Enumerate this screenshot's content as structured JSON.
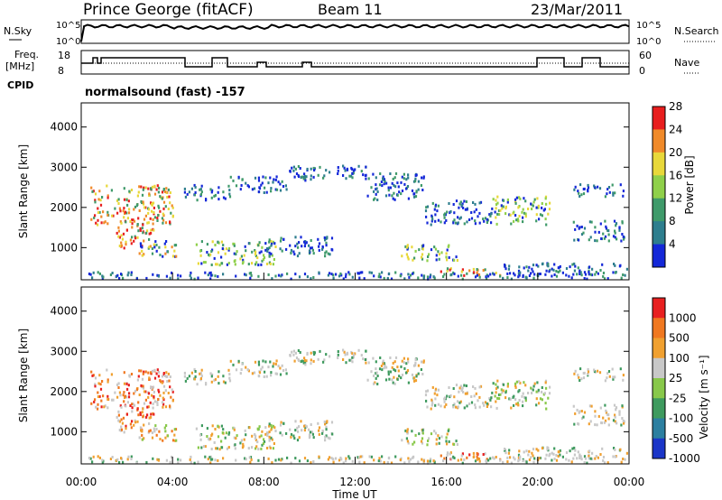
{
  "header": {
    "station": "Prince George (fitACF)",
    "beam": "Beam 11",
    "date": "23/Mar/2011"
  },
  "noise_panel": {
    "left_label": "N.Sky",
    "right_label": "N.Search",
    "left_ticks": [
      "10^5",
      "10^0"
    ],
    "right_ticks": [
      "10^5",
      "10^0"
    ]
  },
  "freq_panel": {
    "left_label_1": "Freq.",
    "left_label_2": "[MHz]",
    "right_label": "Nave",
    "left_ticks": [
      "18",
      "8"
    ],
    "right_ticks": [
      "60",
      "0"
    ]
  },
  "cpid": {
    "label": "CPID",
    "value": "normalsound (fast) -157"
  },
  "chart_data": [
    {
      "type": "heatmap",
      "panel": "power",
      "ylabel": "Slant Range [km]",
      "xlabel": "",
      "ylim": [
        200,
        4600
      ],
      "yticks": [
        "1000",
        "2000",
        "3000",
        "4000"
      ],
      "colorbar_label": "Power [dB]",
      "colorbar_ticks": [
        "4",
        "8",
        "12",
        "16",
        "20",
        "24",
        "28"
      ],
      "colorbar_colors": [
        "#1428d8",
        "#2e7e8e",
        "#3f9a6a",
        "#8fd04a",
        "#e8d83a",
        "#f08a2a",
        "#e81e1e"
      ]
    },
    {
      "type": "heatmap",
      "panel": "velocity",
      "ylabel": "Slant Range [km]",
      "xlabel": "Time UT",
      "ylim": [
        200,
        4600
      ],
      "xlim": [
        "00:00",
        "24:00"
      ],
      "yticks": [
        "1000",
        "2000",
        "3000",
        "4000"
      ],
      "xticks": [
        "00:00",
        "04:00",
        "08:00",
        "12:00",
        "16:00",
        "20:00",
        "00:00"
      ],
      "colorbar_label": "Velocity [m s⁻¹]",
      "colorbar_ticks": [
        "1000",
        "500",
        "100",
        "25",
        "-25",
        "-100",
        "-500",
        "-1000"
      ],
      "colorbar_colors": [
        "#1b36c8",
        "#2c7fa0",
        "#3e9a5e",
        "#88c84a",
        "#c8c8c8",
        "#f0a030",
        "#f07820",
        "#e82020"
      ]
    }
  ]
}
